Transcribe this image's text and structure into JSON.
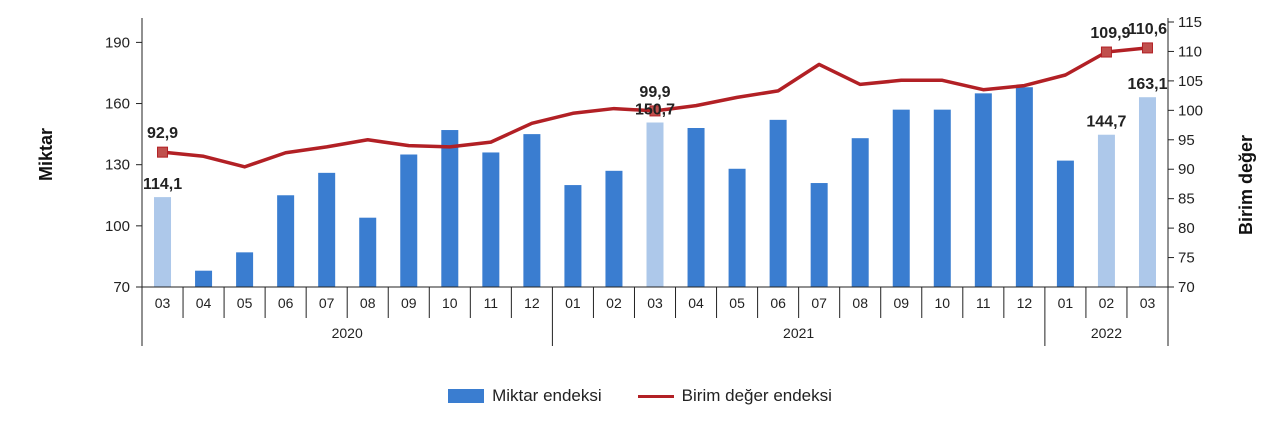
{
  "chart_data": {
    "type": "bar",
    "left_axis": {
      "label": "Miktar",
      "ticks": [
        "70",
        "100",
        "130",
        "160",
        "190"
      ],
      "ylim": [
        70,
        200
      ]
    },
    "right_axis": {
      "label": "Birim değer",
      "ticks": [
        "70",
        "75",
        "80",
        "85",
        "90",
        "95",
        "100",
        "105",
        "110",
        "115"
      ],
      "ylim": [
        70,
        115
      ]
    },
    "categories": [
      "03",
      "04",
      "05",
      "06",
      "07",
      "08",
      "09",
      "10",
      "11",
      "12",
      "01",
      "02",
      "03",
      "04",
      "05",
      "06",
      "07",
      "08",
      "09",
      "10",
      "11",
      "12",
      "01",
      "02",
      "03"
    ],
    "years": [
      {
        "label": "2020",
        "from": 0,
        "to": 9
      },
      {
        "label": "2021",
        "from": 10,
        "to": 21
      },
      {
        "label": "2022",
        "from": 22,
        "to": 24
      }
    ],
    "series": [
      {
        "name": "Miktar endeksi",
        "type": "bar",
        "axis": "left",
        "values": [
          114.1,
          78,
          87,
          115,
          126,
          104,
          135,
          147,
          136,
          145,
          120,
          127,
          150.7,
          148,
          128,
          152,
          121,
          143,
          157,
          157,
          165,
          168,
          132,
          144.7,
          163.1
        ],
        "highlight": [
          0,
          12,
          23,
          24
        ]
      },
      {
        "name": "Birim değer endeksi",
        "type": "line",
        "axis": "right",
        "values": [
          92.9,
          92.2,
          90.4,
          92.8,
          93.8,
          95.0,
          94.0,
          93.8,
          94.6,
          97.8,
          99.5,
          100.3,
          99.9,
          100.8,
          102.2,
          103.3,
          107.8,
          104.4,
          105.1,
          105.1,
          103.5,
          104.2,
          106.0,
          109.9,
          110.6
        ],
        "markers": [
          0,
          12,
          23,
          24
        ]
      }
    ],
    "bar_labels": [
      {
        "index": 0,
        "text": "114,1"
      },
      {
        "index": 12,
        "text": "150,7"
      },
      {
        "index": 23,
        "text": "144,7"
      },
      {
        "index": 24,
        "text": "163,1"
      }
    ],
    "line_labels": [
      {
        "index": 0,
        "text": "92,9"
      },
      {
        "index": 12,
        "text": "99,9"
      },
      {
        "index": 23,
        "text": "109,9"
      },
      {
        "index": 24,
        "text": "110,6"
      }
    ],
    "colors": {
      "bar": "#3a7dd0",
      "bar_highlight": "#adc8ea",
      "line": "#b22025",
      "axis": "#222222"
    },
    "legend_position": "bottom"
  }
}
